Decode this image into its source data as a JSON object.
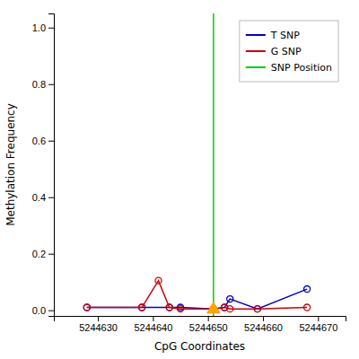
{
  "chart_data": {
    "type": "line",
    "xlabel": "CpG Coordinates",
    "ylabel": "Methylation Frequency",
    "xlim": [
      5244622,
      5244675
    ],
    "ylim": [
      -0.02,
      1.05
    ],
    "xticks": [
      5244630,
      5244640,
      5244650,
      5244660,
      5244670
    ],
    "yticks": [
      {
        "value": 0.0,
        "label": "0.0"
      },
      0.2,
      0.4,
      0.6,
      0.8,
      {
        "value": 1.0,
        "label": "1.0"
      }
    ],
    "grid": false,
    "legend": "upper right",
    "series": [
      {
        "name": "T SNP",
        "color": "#0000cc",
        "marker": "circle",
        "x": [
          5244628,
          5244638,
          5244643,
          5244645,
          5244651,
          5244653,
          5244654,
          5244659,
          5244668
        ],
        "values": [
          0.01,
          0.01,
          0.01,
          0.01,
          0.005,
          0.01,
          0.04,
          0.005,
          0.075
        ]
      },
      {
        "name": "G SNP",
        "color": "#cc0000",
        "marker": "circle",
        "x": [
          5244628,
          5244638,
          5244641,
          5244643,
          5244645,
          5244651,
          5244653,
          5244654,
          5244659,
          5244668
        ],
        "values": [
          0.01,
          0.01,
          0.105,
          0.01,
          0.005,
          0.005,
          0.01,
          0.005,
          0.005,
          0.01
        ]
      }
    ],
    "vlines": [
      {
        "name": "SNP Position",
        "x": 5244651,
        "color": "#00cc00"
      }
    ],
    "points": [
      {
        "x": 5244651,
        "y": 0.003,
        "color": "#FFA500",
        "marker": "triangle"
      }
    ]
  }
}
